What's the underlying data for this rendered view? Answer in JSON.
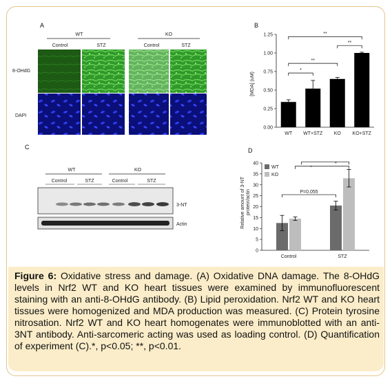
{
  "panel_a": {
    "letter": "A",
    "groups": [
      "WT",
      "KO"
    ],
    "conditions": [
      "Control",
      "STZ",
      "Control",
      "STZ"
    ],
    "rows": [
      "8-OHdG",
      "DAPI"
    ]
  },
  "panel_b": {
    "letter": "B"
  },
  "panel_c": {
    "letter": "C",
    "groups": [
      "WT",
      "KO"
    ],
    "conditions": [
      "Control",
      "STZ",
      "Control",
      "STZ"
    ],
    "bands": [
      "3-NT",
      "Actin"
    ]
  },
  "panel_d": {
    "letter": "D"
  },
  "caption": {
    "label": "Figure 6:",
    "text": " Oxidative stress and damage. (A) Oxidative DNA damage. The 8-OHdG levels in Nrf2 WT and KO heart tissues were examined by immunofluorescent staining with an anti-8-OHdG antibody. (B) Lipid peroxidation. Nrf2 WT and KO heart tissues were homogenized and MDA production was measured. (C) Protein tyrosine nitrosation. Nrf2 WT and KO heart homogenates were immunoblotted with an anti-3NT antibody. Anti-sarcomeric acting was used as loading control. (D) Quantification of experiment (C).*, p<0.05; **, p<0.01."
  },
  "colors": {
    "caption_bg": "#fbedc9",
    "frame": "#e3c48a",
    "green_stain": "#2f9a2a",
    "dapi_blue": "#1a22b8"
  },
  "chart_data": [
    {
      "panel": "B",
      "type": "bar",
      "categories": [
        "WT",
        "WT+STZ",
        "KO",
        "KO+STZ"
      ],
      "values": [
        0.34,
        0.52,
        0.65,
        1.0
      ],
      "errors": [
        0.03,
        0.11,
        0.02,
        0.01
      ],
      "ylabel": "[MDA] (uM)",
      "ylim": [
        0,
        1.25
      ],
      "yticks": [
        "0.00",
        "0.25",
        "0.50",
        "0.75",
        "1.00",
        "1.25"
      ],
      "significance": [
        {
          "pair": [
            "WT",
            "KO+STZ"
          ],
          "label": "**"
        },
        {
          "pair": [
            "WT",
            "KO"
          ],
          "label": "**"
        },
        {
          "pair": [
            "WT",
            "WT+STZ"
          ],
          "label": "*"
        },
        {
          "pair": [
            "KO",
            "KO+STZ"
          ],
          "label": "**"
        }
      ],
      "color": "#000000"
    },
    {
      "panel": "D",
      "type": "bar",
      "categories": [
        "Control",
        "STZ"
      ],
      "series": [
        {
          "name": "WT",
          "values": [
            12.5,
            20.5
          ],
          "errors": [
            3.5,
            2.0
          ],
          "color": "#6b6b6b"
        },
        {
          "name": "KO",
          "values": [
            14.5,
            33.0
          ],
          "errors": [
            0.8,
            4.0
          ],
          "color": "#bdbdbd"
        }
      ],
      "ylabel": "Relative amount of 3-NT protein/actin",
      "ylim": [
        0,
        40
      ],
      "yticks": [
        "0",
        "5",
        "10",
        "15",
        "20",
        "25",
        "30",
        "35",
        "40"
      ],
      "significance": [
        {
          "label": "P=0.055"
        },
        {
          "label": "*"
        },
        {
          "label": "*"
        }
      ],
      "legend": "top-left"
    }
  ]
}
